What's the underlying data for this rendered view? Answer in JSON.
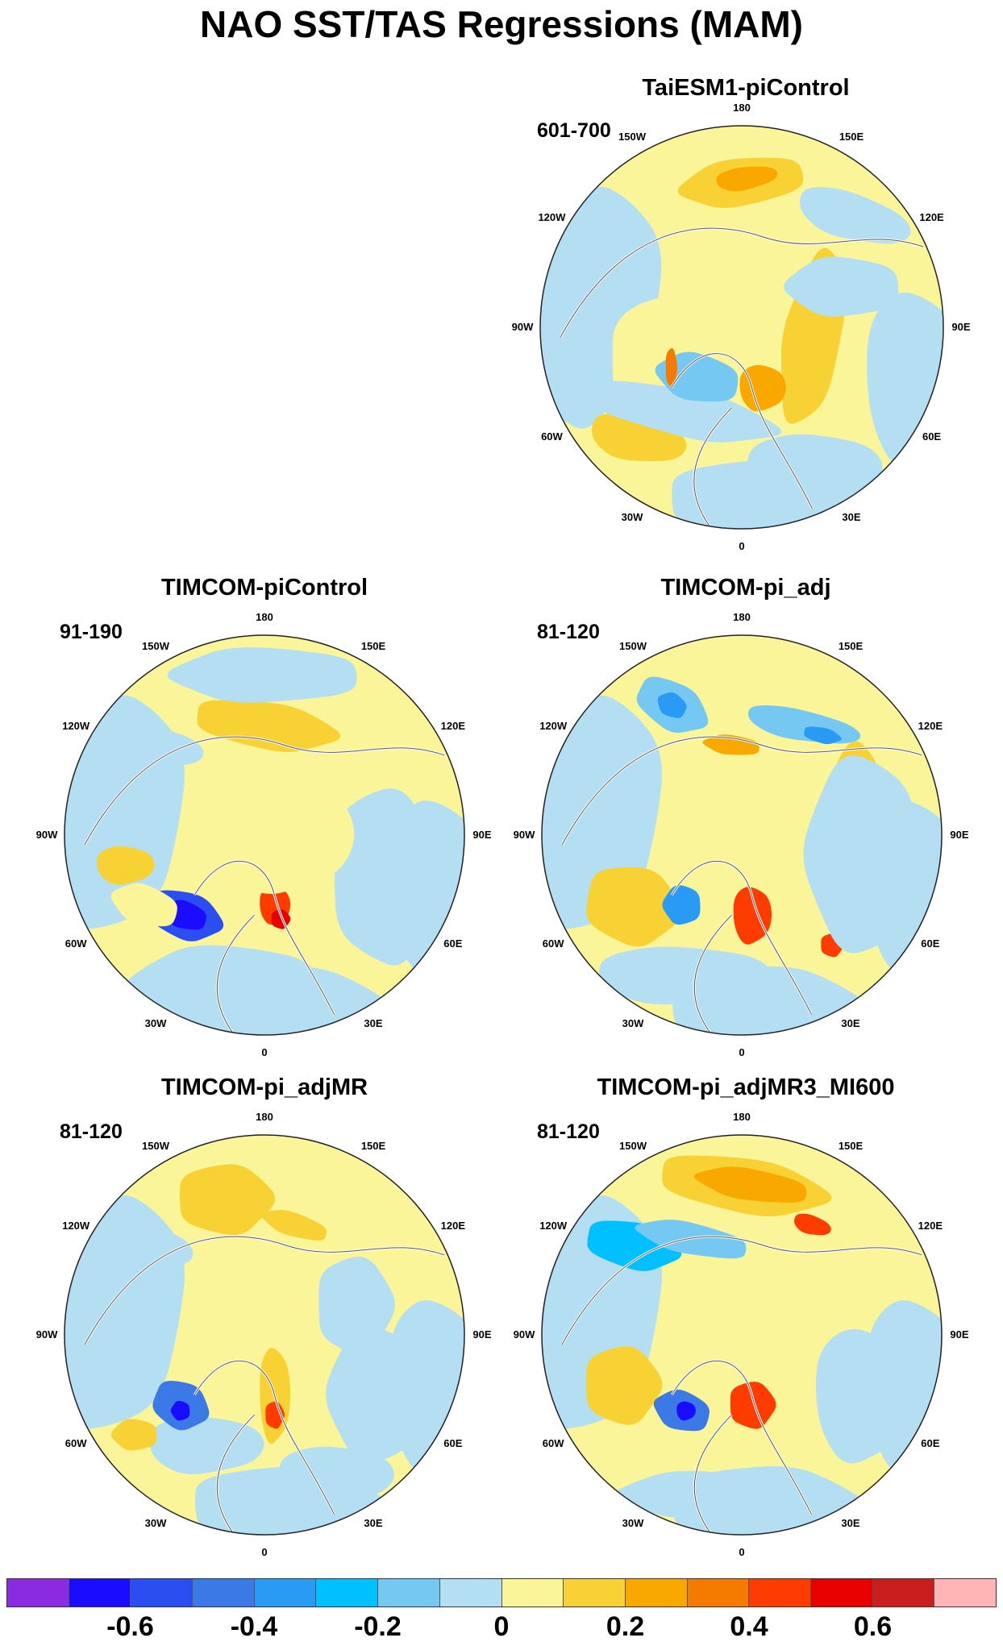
{
  "figure": {
    "title": "NAO SST/TAS Regressions (MAM)"
  },
  "longitude_labels": [
    "180",
    "150E",
    "120E",
    "90E",
    "60E",
    "30E",
    "0",
    "30W",
    "60W",
    "90W",
    "120W",
    "150W"
  ],
  "panels": [
    {
      "id": "taiesm",
      "title": "TaiESM1-piControl",
      "period": "601-700"
    },
    {
      "id": "timcom-pictl",
      "title": "TIMCOM-piControl",
      "period": "91-190"
    },
    {
      "id": "timcom-adj",
      "title": "TIMCOM-pi_adj",
      "period": "81-120"
    },
    {
      "id": "timcom-adjmr",
      "title": "TIMCOM-pi_adjMR",
      "period": "81-120"
    },
    {
      "id": "timcom-adjmr3",
      "title": "TIMCOM-pi_adjMR3_MI600",
      "period": "81-120"
    }
  ],
  "colorbar": {
    "colors": [
      "#8a2be2",
      "#1a0dff",
      "#2b4ef0",
      "#3b7ae6",
      "#2a9bf5",
      "#00c0ff",
      "#74c8f2",
      "#b4def2",
      "#fbf59a",
      "#f8d234",
      "#f9a800",
      "#f47a00",
      "#ff3c00",
      "#e80000",
      "#c81e1e",
      "#ffb5b5"
    ],
    "tick_labels": [
      "-0.6",
      "-0.4",
      "-0.2",
      "0",
      "0.2",
      "0.4",
      "0.6"
    ],
    "tick_positions": [
      2,
      4,
      6,
      8,
      10,
      12,
      14
    ]
  }
}
